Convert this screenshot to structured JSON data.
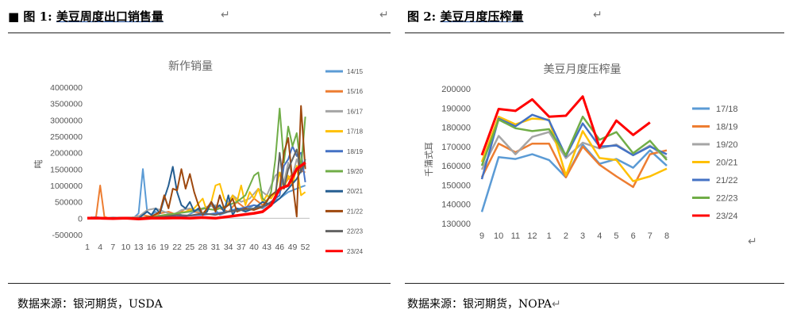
{
  "left": {
    "caption_prefix": "图 1:",
    "caption": "美豆周度出口销售量",
    "source": "数据来源：银河期货，USDA",
    "chart_data": {
      "type": "line",
      "title": "新作销量",
      "ylabel": "吨",
      "xlabel": "",
      "ylim": [
        -500000,
        4000000
      ],
      "yticks": [
        "4000000",
        "3500000",
        "3000000",
        "2500000",
        "2000000",
        "1500000",
        "1000000",
        "500000",
        "0",
        "-500000"
      ],
      "ytick_values": [
        4000000,
        3500000,
        3000000,
        2500000,
        2000000,
        1500000,
        1000000,
        500000,
        0,
        -500000
      ],
      "xticks": [
        "1",
        "4",
        "7",
        "10",
        "13",
        "16",
        "19",
        "22",
        "25",
        "28",
        "31",
        "34",
        "37",
        "40",
        "43",
        "46",
        "49",
        "52"
      ],
      "xtick_values": [
        1,
        4,
        7,
        10,
        13,
        16,
        19,
        22,
        25,
        28,
        31,
        34,
        37,
        40,
        43,
        46,
        49,
        52
      ],
      "xlim": [
        1,
        53
      ],
      "grid": false,
      "legend_position": "right",
      "series": [
        {
          "name": "14/15",
          "color": "#5b9bd5",
          "width": 2,
          "x": [
            1,
            3,
            5,
            8,
            10,
            12,
            13,
            14,
            15,
            16,
            17,
            18,
            20,
            22,
            24,
            26,
            28,
            30,
            32,
            34,
            36,
            38,
            40,
            42,
            44,
            46,
            48,
            50,
            52
          ],
          "y": [
            0,
            40000,
            0,
            20000,
            0,
            30000,
            150000,
            1500000,
            200000,
            100000,
            200000,
            50000,
            100000,
            150000,
            50000,
            200000,
            300000,
            400000,
            100000,
            200000,
            300000,
            250000,
            400000,
            300000,
            500000,
            600000,
            800000,
            900000,
            1000000
          ]
        },
        {
          "name": "15/16",
          "color": "#ed7d31",
          "width": 2,
          "x": [
            1,
            2,
            3,
            4,
            5,
            6,
            8,
            10,
            12,
            14,
            16,
            18,
            20,
            22,
            24,
            26,
            28,
            30,
            32,
            34,
            36,
            38,
            40,
            42,
            44,
            46,
            48,
            50,
            52
          ],
          "y": [
            0,
            30000,
            0,
            1000000,
            50000,
            0,
            20000,
            0,
            30000,
            100000,
            50000,
            150000,
            200000,
            100000,
            300000,
            200000,
            150000,
            400000,
            300000,
            200000,
            500000,
            300000,
            600000,
            400000,
            700000,
            800000,
            1200000,
            1500000,
            1400000
          ]
        },
        {
          "name": "16/17",
          "color": "#a5a5a5",
          "width": 2,
          "x": [
            1,
            3,
            5,
            7,
            9,
            11,
            13,
            15,
            17,
            19,
            21,
            23,
            25,
            27,
            29,
            31,
            33,
            35,
            37,
            39,
            41,
            43,
            45,
            46,
            47,
            48,
            49,
            50,
            51,
            52
          ],
          "y": [
            0,
            20000,
            0,
            30000,
            10000,
            0,
            50000,
            250000,
            300000,
            200000,
            100000,
            250000,
            300000,
            200000,
            350000,
            400000,
            300000,
            700000,
            500000,
            600000,
            900000,
            700000,
            1300000,
            1400000,
            1100000,
            1700000,
            1300000,
            1800000,
            1500000,
            1600000
          ]
        },
        {
          "name": "17/18",
          "color": "#ffc000",
          "width": 2,
          "x": [
            1,
            4,
            7,
            10,
            13,
            16,
            19,
            22,
            24,
            26,
            28,
            29,
            30,
            31,
            32,
            33,
            34,
            35,
            36,
            37,
            38,
            39,
            40,
            41,
            42,
            43,
            44,
            45,
            46,
            47,
            48,
            49,
            50,
            51,
            52
          ],
          "y": [
            0,
            20000,
            0,
            10000,
            0,
            30000,
            100000,
            150000,
            200000,
            300000,
            600000,
            200000,
            500000,
            1000000,
            1050000,
            600000,
            400000,
            700000,
            500000,
            1000000,
            400000,
            800000,
            600000,
            900000,
            500000,
            700000,
            600000,
            800000,
            1400000,
            900000,
            1300000,
            1000000,
            1600000,
            700000,
            800000
          ]
        },
        {
          "name": "18/19",
          "color": "#4472c4",
          "width": 2,
          "x": [
            1,
            4,
            7,
            10,
            13,
            16,
            19,
            22,
            25,
            28,
            31,
            34,
            37,
            40,
            42,
            44,
            46,
            47,
            48,
            49,
            50,
            51,
            52
          ],
          "y": [
            0,
            10000,
            0,
            20000,
            0,
            10000,
            30000,
            50000,
            80000,
            100000,
            150000,
            200000,
            300000,
            400000,
            350000,
            500000,
            700000,
            1600000,
            1800000,
            2200000,
            1900000,
            2000000,
            1100000
          ]
        },
        {
          "name": "19/20",
          "color": "#70ad47",
          "width": 2,
          "x": [
            1,
            4,
            7,
            10,
            13,
            16,
            19,
            22,
            25,
            28,
            31,
            34,
            36,
            38,
            40,
            41,
            42,
            43,
            44,
            45,
            46,
            47,
            48,
            49,
            50,
            51,
            52
          ],
          "y": [
            0,
            10000,
            0,
            20000,
            0,
            30000,
            100000,
            150000,
            200000,
            300000,
            250000,
            400000,
            500000,
            700000,
            1300000,
            1400000,
            600000,
            500000,
            800000,
            1800000,
            3350000,
            1700000,
            2800000,
            2200000,
            2600000,
            1500000,
            3100000
          ]
        },
        {
          "name": "20/21",
          "color": "#255e91",
          "width": 2,
          "x": [
            1,
            4,
            7,
            10,
            13,
            14,
            15,
            16,
            17,
            18,
            19,
            20,
            21,
            22,
            23,
            24,
            25,
            26,
            27,
            28,
            29,
            30,
            31,
            32,
            33,
            34,
            35,
            36,
            38,
            40,
            42,
            44,
            46,
            48,
            50,
            52
          ],
          "y": [
            0,
            10000,
            0,
            20000,
            0,
            100000,
            200000,
            100000,
            300000,
            150000,
            600000,
            1000000,
            1570000,
            800000,
            400000,
            300000,
            500000,
            200000,
            300000,
            100000,
            200000,
            500000,
            300000,
            400000,
            200000,
            700000,
            100000,
            300000,
            200000,
            300000,
            500000,
            400000,
            600000,
            900000,
            1200000,
            1700000
          ]
        },
        {
          "name": "21/22",
          "color": "#9e480e",
          "width": 2,
          "x": [
            1,
            4,
            7,
            10,
            13,
            16,
            18,
            19,
            20,
            21,
            22,
            23,
            24,
            25,
            26,
            27,
            28,
            29,
            30,
            31,
            32,
            33,
            34,
            35,
            36,
            38,
            40,
            42,
            44,
            46,
            47,
            48,
            49,
            50,
            51,
            52
          ],
          "y": [
            0,
            10000,
            0,
            20000,
            0,
            50000,
            200000,
            700000,
            300000,
            900000,
            850000,
            1500000,
            900000,
            1350000,
            800000,
            400000,
            100000,
            300000,
            500000,
            200000,
            700000,
            300000,
            400000,
            600000,
            200000,
            300000,
            250000,
            350000,
            700000,
            900000,
            2000000,
            2450000,
            1100000,
            50000,
            3430000,
            1500000
          ]
        },
        {
          "name": "22/23",
          "color": "#636363",
          "width": 2,
          "x": [
            1,
            4,
            7,
            10,
            13,
            16,
            19,
            22,
            25,
            28,
            31,
            34,
            37,
            40,
            43,
            45,
            46,
            47,
            48,
            49,
            50,
            51,
            52
          ],
          "y": [
            0,
            10000,
            0,
            10000,
            0,
            20000,
            50000,
            100000,
            80000,
            150000,
            100000,
            200000,
            250000,
            300000,
            400000,
            600000,
            2000000,
            900000,
            1500000,
            1800000,
            2100000,
            1400000,
            1800000
          ]
        },
        {
          "name": "23/24",
          "color": "#ff0000",
          "width": 3.5,
          "x": [
            1,
            4,
            7,
            10,
            13,
            16,
            19,
            22,
            25,
            28,
            31,
            34,
            37,
            40,
            42,
            44,
            46,
            48,
            50,
            52
          ],
          "y": [
            0,
            0,
            -10000,
            0,
            -20000,
            0,
            0,
            10000,
            0,
            20000,
            0,
            50000,
            100000,
            150000,
            200000,
            400000,
            900000,
            1000000,
            1500000,
            1700000
          ]
        }
      ]
    }
  },
  "right": {
    "caption_prefix": "图 2:",
    "caption": "美豆月度压榨量",
    "source": "数据来源：银河期货，NOPA",
    "chart_data": {
      "type": "line",
      "title": "美豆月度压榨量",
      "ylabel": "千蒲式耳",
      "xlabel": "",
      "ylim": [
        130000,
        200000
      ],
      "yticks": [
        "200000",
        "190000",
        "180000",
        "170000",
        "160000",
        "150000",
        "140000",
        "130000"
      ],
      "ytick_values": [
        200000,
        190000,
        180000,
        170000,
        160000,
        150000,
        140000,
        130000
      ],
      "categories": [
        "9",
        "10",
        "11",
        "12",
        "1",
        "2",
        "3",
        "4",
        "5",
        "6",
        "7",
        "8"
      ],
      "grid": false,
      "legend_position": "right",
      "series": [
        {
          "name": "17/18",
          "color": "#5b9bd5",
          "width": 2.5,
          "values": [
            136000,
            164500,
            163500,
            166000,
            163000,
            154000,
            171000,
            161000,
            163500,
            159000,
            168000,
            160000
          ]
        },
        {
          "name": "18/19",
          "color": "#ed7d31",
          "width": 2.5,
          "values": [
            154000,
            171500,
            167000,
            171500,
            171500,
            154000,
            170000,
            160500,
            154500,
            149000,
            166000,
            168000
          ]
        },
        {
          "name": "19/20",
          "color": "#a5a5a5",
          "width": 2.5,
          "values": [
            158000,
            175500,
            166000,
            175000,
            177500,
            164000,
            172000,
            169000,
            171000,
            165500,
            170500,
            164000
          ]
        },
        {
          "name": "20/21",
          "color": "#ffc000",
          "width": 2.5,
          "values": [
            162000,
            185500,
            181500,
            184500,
            184000,
            155000,
            178000,
            164000,
            163000,
            152000,
            154500,
            158500
          ]
        },
        {
          "name": "21/22",
          "color": "#4472c4",
          "width": 2.5,
          "values": [
            153000,
            184500,
            180500,
            186500,
            183500,
            165000,
            182000,
            170000,
            170500,
            165500,
            170000,
            166000
          ]
        },
        {
          "name": "22/23",
          "color": "#70ad47",
          "width": 2.5,
          "values": [
            160000,
            184000,
            179500,
            178000,
            179000,
            165500,
            185500,
            173500,
            177500,
            166500,
            173000,
            163000
          ]
        },
        {
          "name": "23/24",
          "color": "#ff0000",
          "width": 3,
          "values": [
            165500,
            189500,
            188500,
            194500,
            185500,
            186000,
            196000,
            169500,
            183500,
            176000,
            182500,
            null
          ]
        }
      ]
    }
  }
}
